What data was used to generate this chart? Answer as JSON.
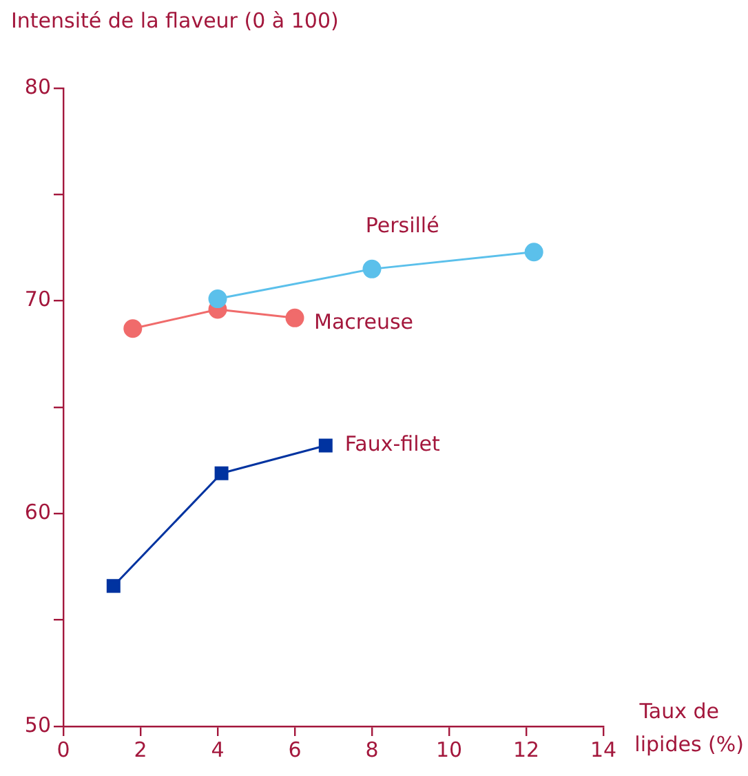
{
  "chart_data": {
    "type": "line",
    "ylabel": "Intensité de la flaveur (0 à 100)",
    "xlabel": "Taux de lipides (%)",
    "xlim": [
      0,
      14
    ],
    "xticks": [
      0,
      2,
      4,
      6,
      8,
      10,
      12,
      14
    ],
    "ylim": [
      50,
      80
    ],
    "yticks": [
      50,
      {
        "value": 55,
        "label": null
      },
      60,
      {
        "value": 65,
        "label": null
      },
      70,
      {
        "value": 75,
        "label": null
      },
      80
    ],
    "grid": false,
    "legend": false,
    "series": [
      {
        "name": "Persillé",
        "color": "#5bc0eb",
        "marker": "circle",
        "x": [
          4,
          8,
          12.2
        ],
        "values": [
          70.1,
          71.5,
          72.3
        ]
      },
      {
        "name": "Macreuse",
        "color": "#f06b6b",
        "marker": "circle",
        "x": [
          1.8,
          4,
          6
        ],
        "values": [
          68.7,
          69.6,
          69.2
        ]
      },
      {
        "name": "Faux-filet",
        "color": "#0033a0",
        "marker": "square",
        "x": [
          1.3,
          4.1,
          6.8
        ],
        "values": [
          56.6,
          61.9,
          63.2
        ]
      }
    ]
  }
}
